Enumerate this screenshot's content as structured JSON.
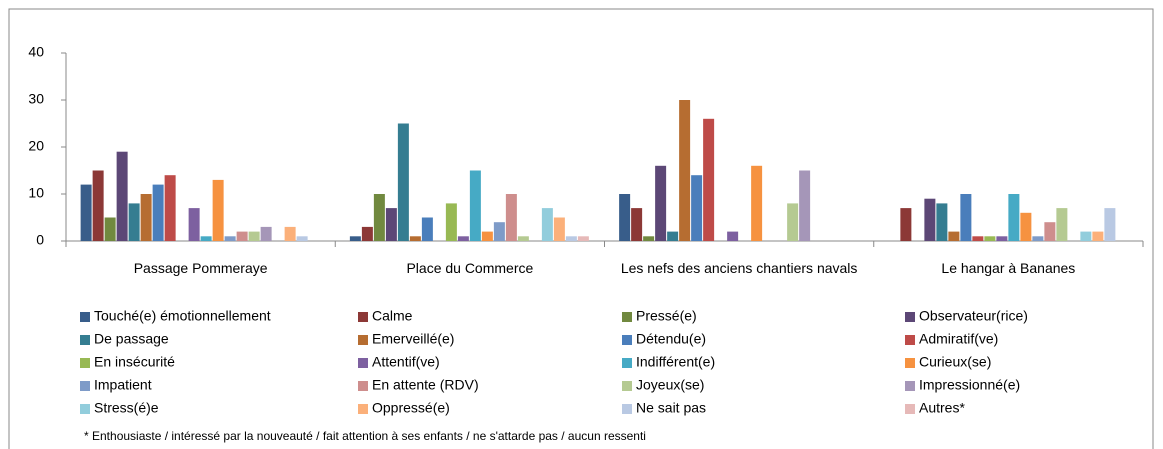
{
  "chart_data": {
    "type": "bar",
    "categories": [
      "Passage Pommeraye",
      "Place du Commerce",
      "Les nefs des anciens chantiers navals",
      "Le hangar à Bananes"
    ],
    "ylim": [
      0,
      40
    ],
    "yticks": [
      0,
      10,
      20,
      30,
      40
    ],
    "series": [
      {
        "name": "Touché(e) émotionnellement",
        "color": "#385d8a",
        "values": [
          12,
          1,
          10,
          0
        ]
      },
      {
        "name": "Calme",
        "color": "#8c3836",
        "values": [
          15,
          3,
          7,
          7
        ]
      },
      {
        "name": "Pressé(e)",
        "color": "#71893f",
        "values": [
          5,
          10,
          1,
          0
        ]
      },
      {
        "name": "Observateur(rice)",
        "color": "#5c4776",
        "values": [
          19,
          7,
          16,
          9
        ]
      },
      {
        "name": "De passage",
        "color": "#357d91",
        "values": [
          8,
          25,
          2,
          8
        ]
      },
      {
        "name": "Emerveillé(e)",
        "color": "#b66d31",
        "values": [
          10,
          1,
          30,
          2
        ]
      },
      {
        "name": "Détendu(e)",
        "color": "#4a7ebb",
        "values": [
          12,
          5,
          14,
          10
        ]
      },
      {
        "name": "Admiratif(ve)",
        "color": "#be4b48",
        "values": [
          14,
          0,
          26,
          1
        ]
      },
      {
        "name": "En insécurité",
        "color": "#98b954",
        "values": [
          0,
          8,
          0,
          1
        ]
      },
      {
        "name": "Attentif(ve)",
        "color": "#7d60a0",
        "values": [
          7,
          1,
          2,
          1
        ]
      },
      {
        "name": "Indifférent(e)",
        "color": "#46aac5",
        "values": [
          1,
          15,
          0,
          10
        ]
      },
      {
        "name": "Curieux(se)",
        "color": "#f69240",
        "values": [
          13,
          2,
          16,
          6
        ]
      },
      {
        "name": "Impatient",
        "color": "#7e9bc8",
        "values": [
          1,
          4,
          0,
          1
        ]
      },
      {
        "name": "En attente (RDV)",
        "color": "#ce8e8d",
        "values": [
          2,
          10,
          0,
          4
        ]
      },
      {
        "name": "Joyeux(se)",
        "color": "#b5ca92",
        "values": [
          2,
          1,
          8,
          7
        ]
      },
      {
        "name": "Impressionné(e)",
        "color": "#a596b8",
        "values": [
          3,
          0,
          15,
          0
        ]
      },
      {
        "name": "Stress(é)e",
        "color": "#92cddc",
        "values": [
          0,
          7,
          0,
          2
        ]
      },
      {
        "name": "Oppressé(e)",
        "color": "#fbb07a",
        "values": [
          3,
          5,
          0,
          2
        ]
      },
      {
        "name": "Ne sait pas",
        "color": "#b9c9e3",
        "values": [
          1,
          1,
          0,
          7
        ]
      },
      {
        "name": "Autres*",
        "color": "#e6b9b8",
        "values": [
          0,
          1,
          0,
          0
        ]
      }
    ],
    "footnote": "* Enthousiaste / intéressé par la nouveauté / fait attention à ses enfants / ne s'attarde pas / aucun ressenti"
  }
}
